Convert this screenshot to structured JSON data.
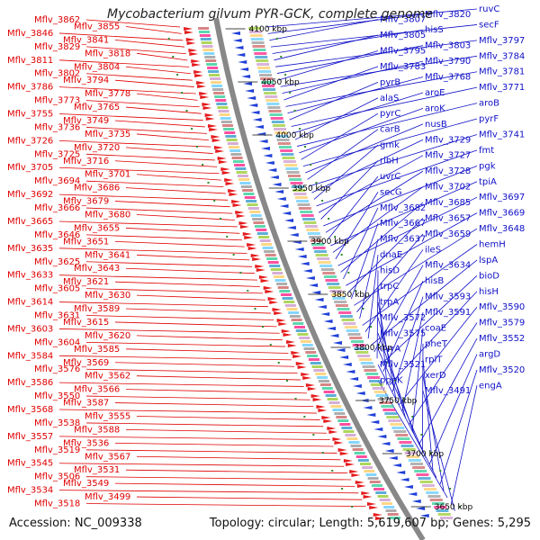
{
  "header": {
    "title": "Mycobacterium gilvum PYR-GCK, complete genome"
  },
  "footer": {
    "accession": "Accession: NC_009338",
    "summary": "Topology: circular; Length: 5,619,607 bp; Genes: 5,295"
  },
  "colors": {
    "forward_feature": "#e41a1c",
    "reverse_feature": "#1f3fd8",
    "left_label": "#e00000",
    "right_label": "#1010c8",
    "backbone": "#888888",
    "tick_mark": "#2e8b2e"
  },
  "scale_ticks": [
    "4100 kbp",
    "4050 kbp",
    "4000 kbp",
    "3950 kbp",
    "3900 kbp",
    "3850 kbp",
    "3800 kbp",
    "3750 kbp",
    "3700 kbp",
    "3650 kbp"
  ],
  "left_labels": [
    "Mflv_3862",
    "Mflv_3855",
    "Mflv_3846",
    "Mflv_3841",
    "Mflv_3829",
    "Mflv_3818",
    "Mflv_3811",
    "Mflv_3804",
    "Mflv_3802",
    "Mflv_3794",
    "Mflv_3786",
    "Mflv_3778",
    "Mflv_3773",
    "Mflv_3765",
    "Mflv_3755",
    "Mflv_3749",
    "Mflv_3736",
    "Mflv_3735",
    "Mflv_3726",
    "Mflv_3720",
    "Mflv_3725",
    "Mflv_3716",
    "Mflv_3705",
    "Mflv_3701",
    "Mflv_3694",
    "Mflv_3686",
    "Mflv_3692",
    "Mflv_3679",
    "Mflv_3666",
    "Mflv_3680",
    "Mflv_3665",
    "Mflv_3655",
    "Mflv_3646",
    "Mflv_3651",
    "Mflv_3635",
    "Mflv_3641",
    "Mflv_3625",
    "Mflv_3643",
    "Mflv_3633",
    "Mflv_3621",
    "Mflv_3605",
    "Mflv_3630",
    "Mflv_3614",
    "Mflv_3589",
    "Mflv_3631",
    "Mflv_3615",
    "Mflv_3603",
    "Mflv_3620",
    "Mflv_3604",
    "Mflv_3585",
    "Mflv_3584",
    "Mflv_3569",
    "Mflv_3576",
    "Mflv_3562",
    "Mflv_3586",
    "Mflv_3566",
    "Mflv_3550",
    "Mflv_3587",
    "Mflv_3568",
    "Mflv_3555",
    "Mflv_3538",
    "Mflv_3588",
    "Mflv_3557",
    "Mflv_3536",
    "Mflv_3519",
    "Mflv_3567",
    "Mflv_3545",
    "Mflv_3531",
    "Mflv_3506",
    "Mflv_3549",
    "Mflv_3534",
    "Mflv_3499",
    "Mflv_3518"
  ],
  "right_labels": [
    "ruvC",
    "Mflv_3820",
    "Mflv_3807",
    "secF",
    "hisS",
    "Mflv_3805",
    "Mflv_3797",
    "Mflv_3803",
    "Mflv_3795",
    "Mflv_3784",
    "Mflv_3790",
    "Mflv_3783",
    "Mflv_3781",
    "Mflv_3768",
    "pyrB",
    "Mflv_3771",
    "aroE",
    "alaS",
    "aroB",
    "aroK",
    "pyrC",
    "pyrF",
    "nusB",
    "carB",
    "Mflv_3741",
    "Mflv_3729",
    "gmk",
    "fmt",
    "Mflv_3727",
    "ribH",
    "pgk",
    "Mflv_3728",
    "uvrC",
    "tpiA",
    "Mflv_3702",
    "secG",
    "Mflv_3697",
    "Mflv_3685",
    "Mflv_3682",
    "Mflv_3669",
    "Mflv_3657",
    "Mflv_3667",
    "Mflv_3648",
    "Mflv_3659",
    "Mflv_3637",
    "hemH",
    "ileS",
    "dnaE",
    "lspA",
    "Mflv_3634",
    "hisD",
    "bioD",
    "hisB",
    "trpC",
    "hisH",
    "Mflv_3593",
    "trpA",
    "Mflv_3590",
    "Mflv_3591",
    "Mflv_3572",
    "Mflv_3579",
    "coaE",
    "Mflv_3575",
    "Mflv_3552",
    "pheT",
    "uvrA",
    "argD",
    "rplT",
    "Mflv_3521",
    "Mflv_3520",
    "xerD",
    "pppK",
    "engA",
    "Mflv_3491"
  ]
}
